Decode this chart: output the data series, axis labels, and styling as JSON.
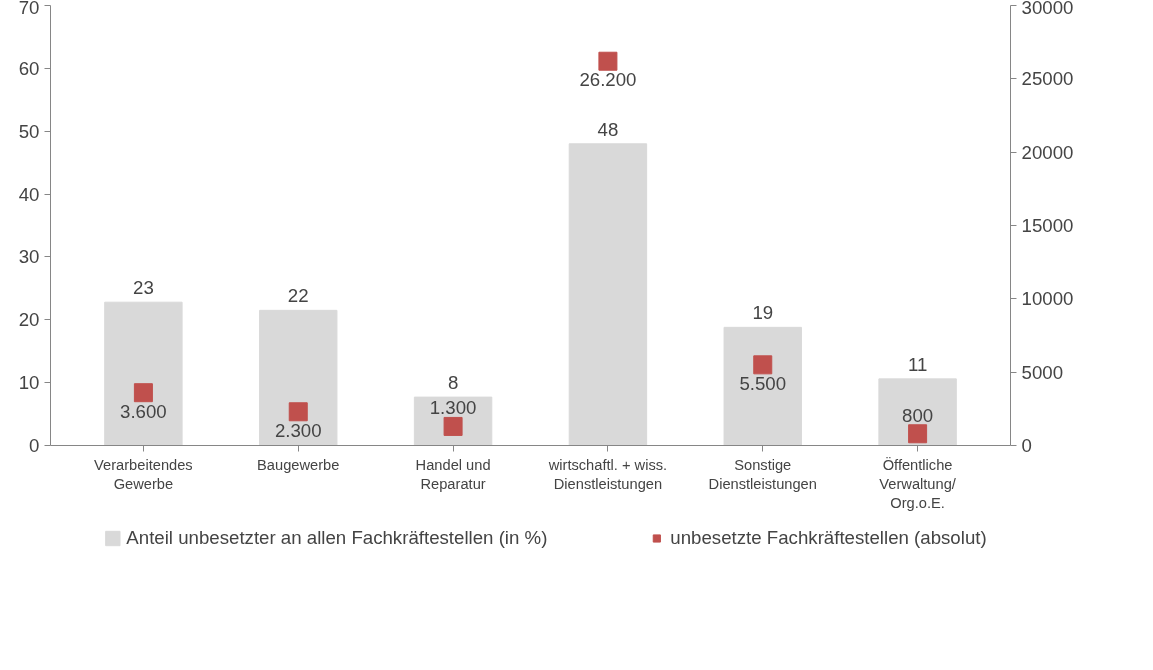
{
  "chart_data": {
    "type": "bar",
    "categories": [
      "Verarbeitendes\nGewerbe",
      "Baugewerbe",
      "Handel und\nReparatur",
      "wirtschaftl. + wiss.\nDienstleistungen",
      "Sonstige\nDienstleistungen",
      "Öffentliche\nVerwaltung/\nOrg.o.E."
    ],
    "series": [
      {
        "name": "Anteil unbesetzter an allen Fachkräftestellen (in %)",
        "color": "#d9d9d9",
        "values": [
          22.8,
          21.5,
          7.7,
          48,
          18.8,
          10.6
        ],
        "value_labels": [
          "23",
          "22",
          "8",
          "48",
          "19",
          "11"
        ]
      },
      {
        "name": "unbesetzte Fachkräftestellen (absolut)",
        "type": "scatter",
        "axis": "y2",
        "color": "#c0504d",
        "values": [
          3600,
          2300,
          1300,
          26200,
          5500,
          800
        ],
        "value_labels": [
          "3.600",
          "2.300",
          "1.300",
          "26.200",
          "5.500",
          "800"
        ]
      }
    ],
    "ylim": [
      0,
      70
    ],
    "yticks": [
      0,
      10,
      20,
      30,
      40,
      50,
      60,
      70
    ],
    "y2lim": [
      0,
      30000
    ],
    "y2ticks": [
      0,
      5000,
      10000,
      15000,
      20000,
      25000,
      30000
    ],
    "marker": "square",
    "grid": false,
    "legend": "bottom"
  }
}
